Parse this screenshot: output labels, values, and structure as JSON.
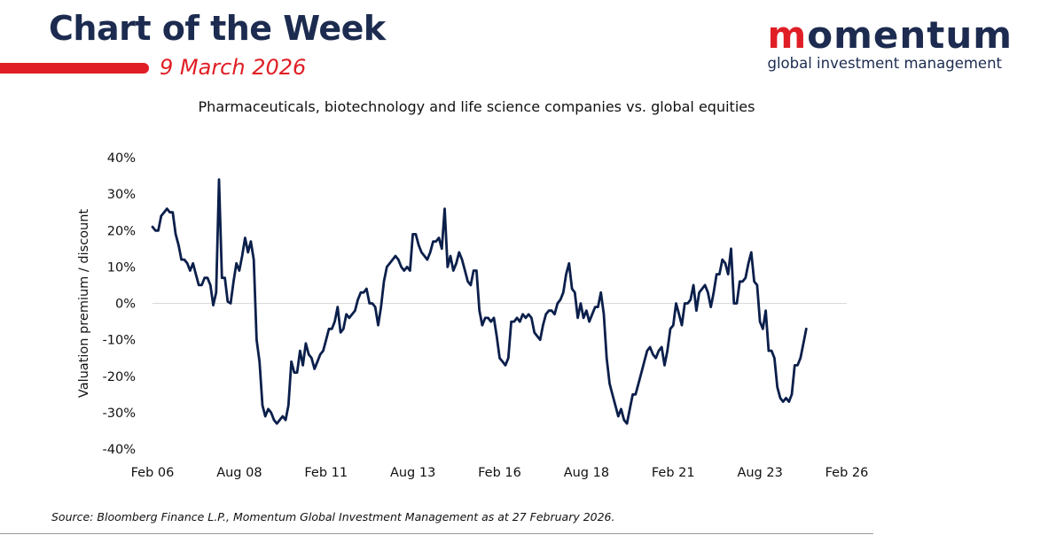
{
  "header": {
    "title": "Chart of the Week",
    "date": "9 March 2026"
  },
  "brand": {
    "logo_accent": "m",
    "logo_rest": "omentum",
    "tagline": "global investment management",
    "navy": "#1c2b4f",
    "red": "#e01e25"
  },
  "chart_data": {
    "type": "line",
    "title": "Pharmaceuticals, biotechnology and life science companies vs. global equities",
    "ylabel": "Valuation premium / discount",
    "xlabel": "",
    "ylim": [
      -40,
      40
    ],
    "y_ticks": [
      "40%",
      "30%",
      "20%",
      "10%",
      "0%",
      "-10%",
      "-20%",
      "-30%",
      "-40%"
    ],
    "x_tick_labels": [
      "Feb 06",
      "Aug 08",
      "Feb 11",
      "Aug 13",
      "Feb 16",
      "Aug 18",
      "Feb 21",
      "Aug 23",
      "Feb 26"
    ],
    "x_range": [
      "2006-02",
      "2026-02"
    ],
    "line_color": "#0b1f4b",
    "zero_line": true,
    "grid": false,
    "series": [
      {
        "values": [
          [
            "2006-02",
            21
          ],
          [
            "2006-03",
            20
          ],
          [
            "2006-04",
            20
          ],
          [
            "2006-05",
            24
          ],
          [
            "2006-06",
            25
          ],
          [
            "2006-07",
            26
          ],
          [
            "2006-08",
            25
          ],
          [
            "2006-09",
            25
          ],
          [
            "2006-10",
            19
          ],
          [
            "2006-11",
            16
          ],
          [
            "2006-12",
            12
          ],
          [
            "2007-01",
            12
          ],
          [
            "2007-02",
            11
          ],
          [
            "2007-03",
            9
          ],
          [
            "2007-04",
            11
          ],
          [
            "2007-05",
            8
          ],
          [
            "2007-06",
            5
          ],
          [
            "2007-07",
            5
          ],
          [
            "2007-08",
            7
          ],
          [
            "2007-09",
            7
          ],
          [
            "2007-10",
            5
          ],
          [
            "2007-11",
            -0.5
          ],
          [
            "2007-12",
            3
          ],
          [
            "2008-01",
            34
          ],
          [
            "2008-02",
            7
          ],
          [
            "2008-03",
            7
          ],
          [
            "2008-04",
            0.5
          ],
          [
            "2008-05",
            0
          ],
          [
            "2008-06",
            6
          ],
          [
            "2008-07",
            11
          ],
          [
            "2008-08",
            9
          ],
          [
            "2008-09",
            13
          ],
          [
            "2008-10",
            18
          ],
          [
            "2008-11",
            14
          ],
          [
            "2008-12",
            17
          ],
          [
            "2009-01",
            12
          ],
          [
            "2009-02",
            -10
          ],
          [
            "2009-03",
            -16
          ],
          [
            "2009-04",
            -28
          ],
          [
            "2009-05",
            -31
          ],
          [
            "2009-06",
            -29
          ],
          [
            "2009-07",
            -30
          ],
          [
            "2009-08",
            -32
          ],
          [
            "2009-09",
            -33
          ],
          [
            "2009-10",
            -32
          ],
          [
            "2009-11",
            -31
          ],
          [
            "2009-12",
            -32
          ],
          [
            "2010-01",
            -28
          ],
          [
            "2010-02",
            -16
          ],
          [
            "2010-03",
            -19
          ],
          [
            "2010-04",
            -19
          ],
          [
            "2010-05",
            -13
          ],
          [
            "2010-06",
            -17
          ],
          [
            "2010-07",
            -11
          ],
          [
            "2010-08",
            -14
          ],
          [
            "2010-09",
            -15
          ],
          [
            "2010-10",
            -18
          ],
          [
            "2010-11",
            -16
          ],
          [
            "2010-12",
            -14
          ],
          [
            "2011-01",
            -13
          ],
          [
            "2011-02",
            -10
          ],
          [
            "2011-03",
            -7
          ],
          [
            "2011-04",
            -7
          ],
          [
            "2011-05",
            -5
          ],
          [
            "2011-06",
            -1
          ],
          [
            "2011-07",
            -8
          ],
          [
            "2011-08",
            -7
          ],
          [
            "2011-09",
            -3
          ],
          [
            "2011-10",
            -4
          ],
          [
            "2011-11",
            -3
          ],
          [
            "2011-12",
            -2
          ],
          [
            "2012-01",
            1
          ],
          [
            "2012-02",
            3
          ],
          [
            "2012-03",
            3
          ],
          [
            "2012-04",
            4
          ],
          [
            "2012-05",
            0
          ],
          [
            "2012-06",
            0
          ],
          [
            "2012-07",
            -1
          ],
          [
            "2012-08",
            -6
          ],
          [
            "2012-09",
            -1
          ],
          [
            "2012-10",
            6
          ],
          [
            "2012-11",
            10
          ],
          [
            "2012-12",
            11
          ],
          [
            "2013-01",
            12
          ],
          [
            "2013-02",
            13
          ],
          [
            "2013-03",
            12
          ],
          [
            "2013-04",
            10
          ],
          [
            "2013-05",
            9
          ],
          [
            "2013-06",
            10
          ],
          [
            "2013-07",
            9
          ],
          [
            "2013-08",
            19
          ],
          [
            "2013-09",
            19
          ],
          [
            "2013-10",
            16
          ],
          [
            "2013-11",
            14
          ],
          [
            "2013-12",
            13
          ],
          [
            "2014-01",
            12
          ],
          [
            "2014-02",
            14
          ],
          [
            "2014-03",
            17
          ],
          [
            "2014-04",
            17
          ],
          [
            "2014-05",
            18
          ],
          [
            "2014-06",
            15
          ],
          [
            "2014-07",
            26
          ],
          [
            "2014-08",
            10
          ],
          [
            "2014-09",
            13
          ],
          [
            "2014-10",
            9
          ],
          [
            "2014-11",
            11
          ],
          [
            "2014-12",
            14
          ],
          [
            "2015-01",
            12
          ],
          [
            "2015-02",
            9
          ],
          [
            "2015-03",
            6
          ],
          [
            "2015-04",
            5
          ],
          [
            "2015-05",
            9
          ],
          [
            "2015-06",
            9
          ],
          [
            "2015-07",
            -2
          ],
          [
            "2015-08",
            -6
          ],
          [
            "2015-09",
            -4
          ],
          [
            "2015-10",
            -4
          ],
          [
            "2015-11",
            -5
          ],
          [
            "2015-12",
            -4
          ],
          [
            "2016-01",
            -9
          ],
          [
            "2016-02",
            -15
          ],
          [
            "2016-03",
            -16
          ],
          [
            "2016-04",
            -17
          ],
          [
            "2016-05",
            -15
          ],
          [
            "2016-06",
            -5
          ],
          [
            "2016-07",
            -5
          ],
          [
            "2016-08",
            -4
          ],
          [
            "2016-09",
            -5
          ],
          [
            "2016-10",
            -3
          ],
          [
            "2016-11",
            -4
          ],
          [
            "2016-12",
            -3
          ],
          [
            "2017-01",
            -4
          ],
          [
            "2017-02",
            -8
          ],
          [
            "2017-03",
            -9
          ],
          [
            "2017-04",
            -10
          ],
          [
            "2017-05",
            -6
          ],
          [
            "2017-06",
            -3
          ],
          [
            "2017-07",
            -2
          ],
          [
            "2017-08",
            -2
          ],
          [
            "2017-09",
            -3
          ],
          [
            "2017-10",
            0
          ],
          [
            "2017-11",
            1
          ],
          [
            "2017-12",
            3
          ],
          [
            "2018-01",
            8
          ],
          [
            "2018-02",
            11
          ],
          [
            "2018-03",
            4
          ],
          [
            "2018-04",
            3
          ],
          [
            "2018-05",
            -4
          ],
          [
            "2018-06",
            0
          ],
          [
            "2018-07",
            -4
          ],
          [
            "2018-08",
            -2
          ],
          [
            "2018-09",
            -5
          ],
          [
            "2018-10",
            -3
          ],
          [
            "2018-11",
            -1
          ],
          [
            "2018-12",
            -1
          ],
          [
            "2019-01",
            3
          ],
          [
            "2019-02",
            -3
          ],
          [
            "2019-03",
            -15
          ],
          [
            "2019-04",
            -22
          ],
          [
            "2019-05",
            -25
          ],
          [
            "2019-06",
            -28
          ],
          [
            "2019-07",
            -31
          ],
          [
            "2019-08",
            -29
          ],
          [
            "2019-09",
            -32
          ],
          [
            "2019-10",
            -33
          ],
          [
            "2019-11",
            -29
          ],
          [
            "2019-12",
            -25
          ],
          [
            "2020-01",
            -25
          ],
          [
            "2020-02",
            -22
          ],
          [
            "2020-03",
            -19
          ],
          [
            "2020-04",
            -16
          ],
          [
            "2020-05",
            -13
          ],
          [
            "2020-06",
            -12
          ],
          [
            "2020-07",
            -14
          ],
          [
            "2020-08",
            -15
          ],
          [
            "2020-09",
            -13
          ],
          [
            "2020-10",
            -12
          ],
          [
            "2020-11",
            -17
          ],
          [
            "2020-12",
            -13
          ],
          [
            "2021-01",
            -7
          ],
          [
            "2021-02",
            -6
          ],
          [
            "2021-03",
            0
          ],
          [
            "2021-04",
            -3
          ],
          [
            "2021-05",
            -6
          ],
          [
            "2021-06",
            0
          ],
          [
            "2021-07",
            0
          ],
          [
            "2021-08",
            1
          ],
          [
            "2021-09",
            5
          ],
          [
            "2021-10",
            -2
          ],
          [
            "2021-11",
            3
          ],
          [
            "2021-12",
            4
          ],
          [
            "2022-01",
            5
          ],
          [
            "2022-02",
            3
          ],
          [
            "2022-03",
            -1
          ],
          [
            "2022-04",
            3
          ],
          [
            "2022-05",
            8
          ],
          [
            "2022-06",
            8
          ],
          [
            "2022-07",
            12
          ],
          [
            "2022-08",
            11
          ],
          [
            "2022-09",
            8
          ],
          [
            "2022-10",
            15
          ],
          [
            "2022-11",
            0
          ],
          [
            "2022-12",
            0
          ],
          [
            "2023-01",
            6
          ],
          [
            "2023-02",
            6
          ],
          [
            "2023-03",
            7
          ],
          [
            "2023-04",
            11
          ],
          [
            "2023-05",
            14
          ],
          [
            "2023-06",
            6
          ],
          [
            "2023-07",
            5
          ],
          [
            "2023-08",
            -5
          ],
          [
            "2023-09",
            -7
          ],
          [
            "2023-10",
            -2
          ],
          [
            "2023-11",
            -13
          ],
          [
            "2023-12",
            -13
          ],
          [
            "2024-01",
            -15
          ],
          [
            "2024-02",
            -23
          ],
          [
            "2024-03",
            -26
          ],
          [
            "2024-04",
            -27
          ],
          [
            "2024-05",
            -26
          ],
          [
            "2024-06",
            -27
          ],
          [
            "2024-07",
            -25
          ],
          [
            "2024-08",
            -17
          ],
          [
            "2024-09",
            -17
          ],
          [
            "2024-10",
            -15
          ],
          [
            "2024-11",
            -11
          ],
          [
            "2024-12",
            -7
          ]
        ]
      }
    ]
  },
  "footer": {
    "source": "Source: Bloomberg Finance L.P., Momentum Global Investment Management as at 27 February 2026."
  }
}
